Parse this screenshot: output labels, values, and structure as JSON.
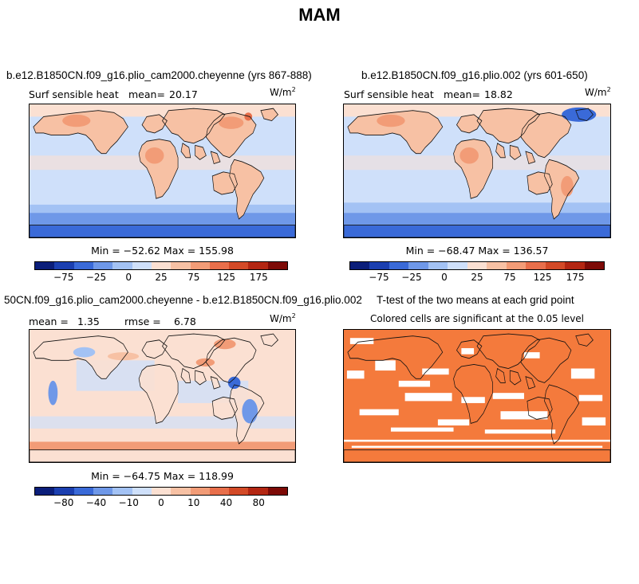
{
  "page": {
    "title": "MAM"
  },
  "units": {
    "base": "W/m",
    "exp": "2"
  },
  "panels": {
    "tl": {
      "title": "b.e12.B1850CN.f09_g16.plio_cam2000.cheyenne (yrs 867-888)",
      "var_label": "Surf sensible heat",
      "mean_label": "mean=",
      "mean_value": "20.17",
      "minmax": "Min = −52.62  Max = 155.98"
    },
    "tr": {
      "title": "b.e12.B1850CN.f09_g16.plio.002 (yrs 601-650)",
      "var_label": "Surf sensible heat",
      "mean_label": "mean=",
      "mean_value": "18.82",
      "minmax": "Min = −68.47  Max = 136.57"
    },
    "bl": {
      "title": "50CN.f09_g16.plio_cam2000.cheyenne - b.e12.B1850CN.f09_g16.plio.002",
      "mean_label": "mean =",
      "mean_value": "1.35",
      "rmse_label": "rmse =",
      "rmse_value": "6.78",
      "minmax": "Min = −64.75  Max = 118.99"
    },
    "br": {
      "title": "T-test of the two means at each grid point",
      "subtitle": "Colored cells are significant at the 0.05 level"
    }
  },
  "legend_top": {
    "colors": [
      "#0b1e7a",
      "#1b3fb0",
      "#3a6ad8",
      "#6f98e8",
      "#a3c2f4",
      "#cfe0fa",
      "#fbe0d2",
      "#f7c1a4",
      "#f29c77",
      "#e86f4b",
      "#d34a27",
      "#b32612",
      "#7d0a06"
    ],
    "ticks": [
      "−75",
      "−25",
      "0",
      "25",
      "75",
      "125",
      "175"
    ]
  },
  "legend_bottom": {
    "colors": [
      "#0b1e7a",
      "#1b3fb0",
      "#3a6ad8",
      "#6f98e8",
      "#a3c2f4",
      "#cfe0fa",
      "#fbe0d2",
      "#f7c1a4",
      "#f29c77",
      "#e86f4b",
      "#d34a27",
      "#b32612",
      "#7d0a06"
    ],
    "ticks": [
      "−80",
      "−40",
      "−10",
      "0",
      "10",
      "40",
      "80"
    ]
  },
  "chart_data": [
    {
      "type": "heatmap",
      "title": "b.e12.B1850CN.f09_g16.plio_cam2000.cheyenne (yrs 867-888)",
      "subtitle": "Surf sensible heat  mean= 20.17",
      "units": "W/m2",
      "min": -52.62,
      "max": 155.98,
      "mean": 20.17,
      "colorbar_ticks": [
        -75,
        -25,
        0,
        25,
        75,
        125,
        175
      ]
    },
    {
      "type": "heatmap",
      "title": "b.e12.B1850CN.f09_g16.plio.002 (yrs 601-650)",
      "subtitle": "Surf sensible heat  mean= 18.82",
      "units": "W/m2",
      "min": -68.47,
      "max": 136.57,
      "mean": 18.82,
      "colorbar_ticks": [
        -75,
        -25,
        0,
        25,
        75,
        125,
        175
      ]
    },
    {
      "type": "heatmap",
      "title": "50CN.f09_g16.plio_cam2000.cheyenne - b.e12.B1850CN.f09_g16.plio.002",
      "subtitle": "mean = 1.35  rmse = 6.78",
      "units": "W/m2",
      "min": -64.75,
      "max": 118.99,
      "mean": 1.35,
      "rmse": 6.78,
      "colorbar_ticks": [
        -80,
        -40,
        -10,
        0,
        10,
        40,
        80
      ]
    },
    {
      "type": "heatmap",
      "title": "T-test of the two means at each grid point",
      "subtitle": "Colored cells are significant at the 0.05 level",
      "significance_level": 0.05,
      "significant_color": "#f47a3c"
    }
  ]
}
